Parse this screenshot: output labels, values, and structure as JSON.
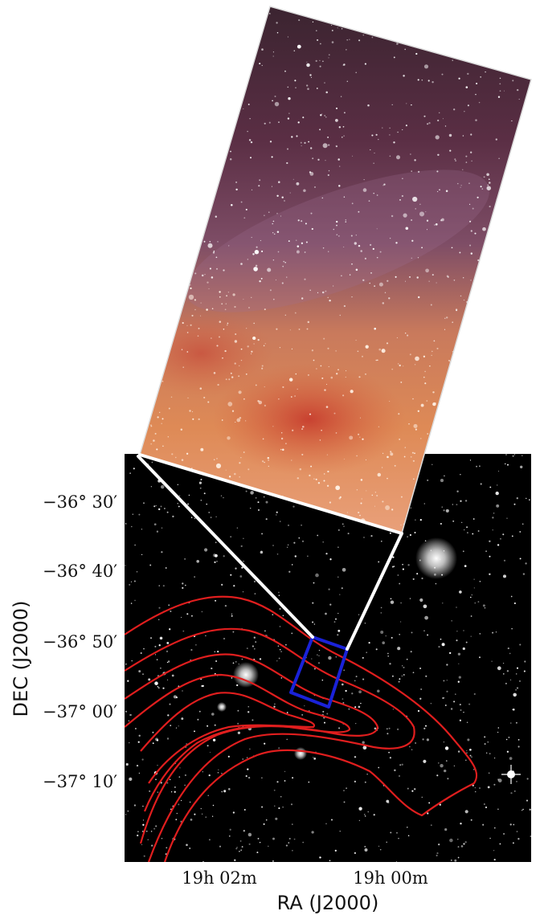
{
  "figure": {
    "xlabel": "RA (J2000)",
    "ylabel": "DEC (J2000)",
    "x_ticks": [
      "19h 02m",
      "19h 00m"
    ],
    "y_ticks": [
      "−36° 30′",
      "−36° 40′",
      "−36° 50′",
      "−37° 00′",
      "−37° 10′"
    ],
    "colors": {
      "contour": "#e01e1e",
      "footprint_box": "#1a22d8",
      "zoom_lines": "#ffffff",
      "field_background": "#000000"
    },
    "panels": [
      "optical-inset-image",
      "wide-field-star-map"
    ]
  }
}
